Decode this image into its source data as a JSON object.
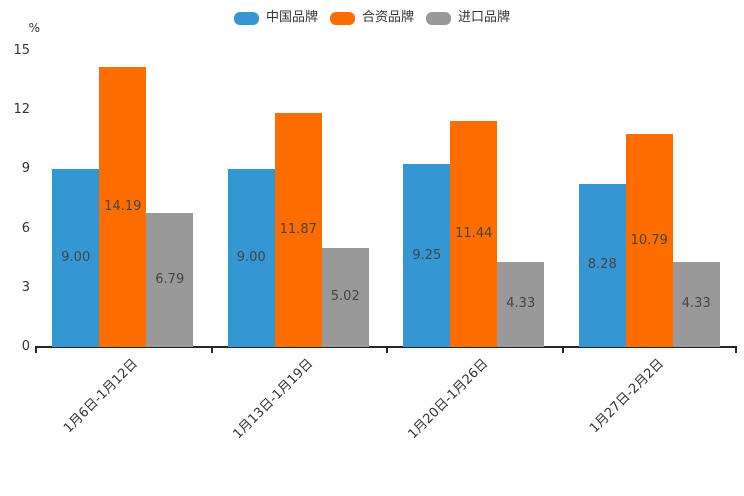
{
  "chart_data": {
    "type": "bar",
    "unit_label": "%",
    "categories": [
      "1月6日-1月12日",
      "1月13日-1月19日",
      "1月20日-1月26日",
      "1月27日-2月2日"
    ],
    "series": [
      {
        "name": "中国品牌",
        "color": "#3496D2",
        "values": [
          9.0,
          9.0,
          9.25,
          8.28
        ]
      },
      {
        "name": "合资品牌",
        "color": "#FF6D00",
        "values": [
          14.19,
          11.87,
          11.44,
          10.79
        ]
      },
      {
        "name": "进口品牌",
        "color": "#999999",
        "values": [
          6.79,
          5.02,
          4.33,
          4.33
        ]
      }
    ],
    "y_ticks": [
      0,
      3,
      6,
      9,
      12,
      15
    ],
    "ylim": [
      0,
      15
    ],
    "value_decimals": 2,
    "value_labels_position": "inside-center",
    "legend_position": "top-center",
    "grid": false,
    "x_label_rotation_deg": 45
  },
  "colors": {
    "background": "#ffffff",
    "axis_line": "#262626",
    "tick_label": "#333333",
    "bar_label": "#444444",
    "legend_text": "#333333"
  }
}
